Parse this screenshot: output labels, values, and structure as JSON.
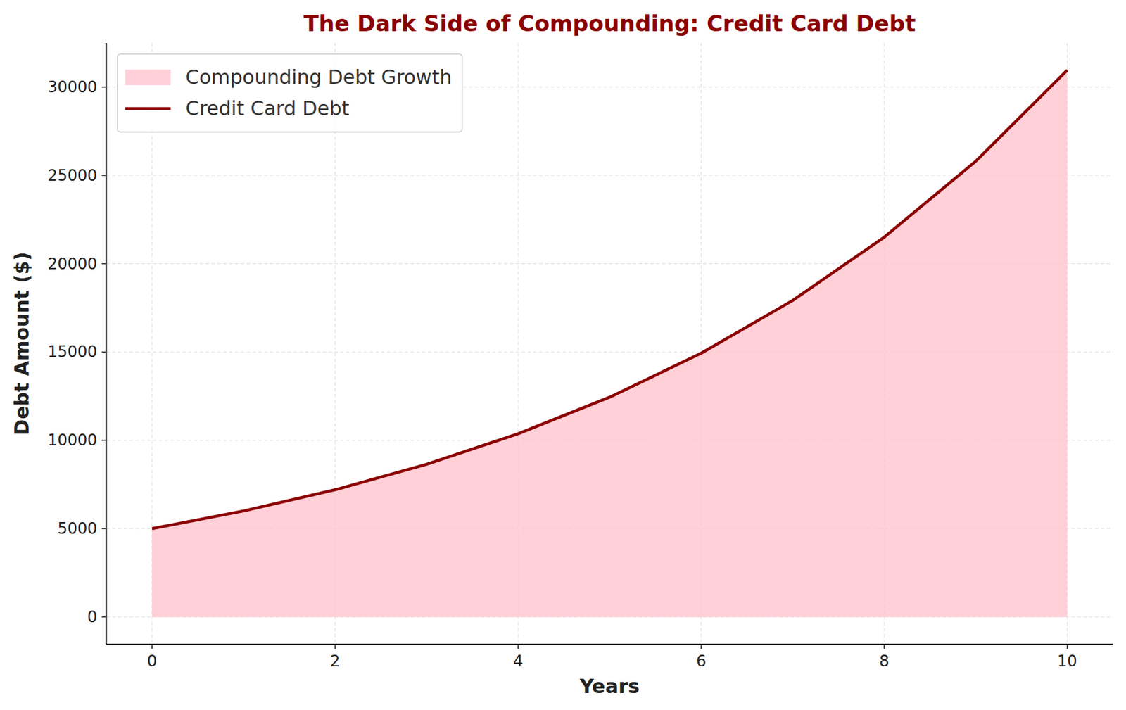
{
  "chart_data": {
    "type": "line",
    "title": "The Dark Side of Compounding: Credit Card Debt",
    "x_label": "Years",
    "y_label": "Debt Amount ($)",
    "x": [
      0,
      1,
      2,
      3,
      4,
      5,
      6,
      7,
      8,
      9,
      10
    ],
    "series": [
      {
        "name": "Compounding Debt Growth",
        "type": "area",
        "color": "#ffc0cb",
        "values": [
          5000,
          6000,
          7200,
          8640,
          10370,
          12440,
          14930,
          17920,
          21500,
          25800,
          30960
        ]
      },
      {
        "name": "Credit Card Debt",
        "type": "line",
        "color": "#8b0000",
        "values": [
          5000,
          6000,
          7200,
          8640,
          10370,
          12440,
          14930,
          17920,
          21500,
          25800,
          30960
        ]
      }
    ],
    "xlim": [
      -0.5,
      10.5
    ],
    "xticks": [
      0,
      2,
      4,
      6,
      8,
      10
    ],
    "ylim": [
      -1550,
      32500
    ],
    "yticks": [
      0,
      5000,
      10000,
      15000,
      20000,
      25000,
      30000
    ],
    "grid": true,
    "legend": "upper left"
  }
}
